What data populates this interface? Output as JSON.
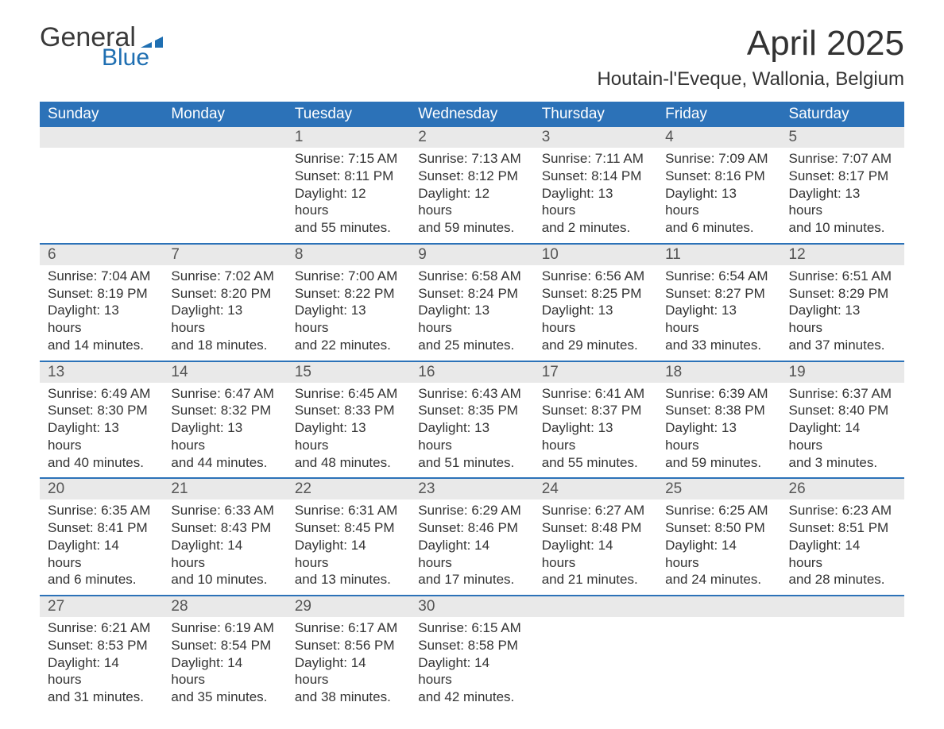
{
  "logo": {
    "text_general": "General",
    "text_blue": "Blue",
    "flag_color": "#1f6fb2"
  },
  "title": {
    "month_year": "April 2025",
    "location": "Houtain-l'Eveque, Wallonia, Belgium",
    "title_fontsize_pt": 33,
    "location_fontsize_pt": 18
  },
  "style": {
    "header_bg": "#2c72b8",
    "header_text_color": "#ffffff",
    "week_divider_color": "#2c72b8",
    "daynum_bg": "#e9e9e9",
    "body_text_color": "#333333",
    "daynum_text_color": "#555555",
    "page_bg": "#ffffff",
    "body_fontsize_pt": 13,
    "weekday_fontsize_pt": 14
  },
  "calendar": {
    "weekdays": [
      "Sunday",
      "Monday",
      "Tuesday",
      "Wednesday",
      "Thursday",
      "Friday",
      "Saturday"
    ],
    "weeks": [
      {
        "days": [
          {
            "blank": true
          },
          {
            "blank": true
          },
          {
            "num": "1",
            "sunrise": "7:15 AM",
            "sunset": "8:11 PM",
            "daylight_h": 12,
            "daylight_m": 55
          },
          {
            "num": "2",
            "sunrise": "7:13 AM",
            "sunset": "8:12 PM",
            "daylight_h": 12,
            "daylight_m": 59
          },
          {
            "num": "3",
            "sunrise": "7:11 AM",
            "sunset": "8:14 PM",
            "daylight_h": 13,
            "daylight_m": 2
          },
          {
            "num": "4",
            "sunrise": "7:09 AM",
            "sunset": "8:16 PM",
            "daylight_h": 13,
            "daylight_m": 6
          },
          {
            "num": "5",
            "sunrise": "7:07 AM",
            "sunset": "8:17 PM",
            "daylight_h": 13,
            "daylight_m": 10
          }
        ]
      },
      {
        "days": [
          {
            "num": "6",
            "sunrise": "7:04 AM",
            "sunset": "8:19 PM",
            "daylight_h": 13,
            "daylight_m": 14
          },
          {
            "num": "7",
            "sunrise": "7:02 AM",
            "sunset": "8:20 PM",
            "daylight_h": 13,
            "daylight_m": 18
          },
          {
            "num": "8",
            "sunrise": "7:00 AM",
            "sunset": "8:22 PM",
            "daylight_h": 13,
            "daylight_m": 22
          },
          {
            "num": "9",
            "sunrise": "6:58 AM",
            "sunset": "8:24 PM",
            "daylight_h": 13,
            "daylight_m": 25
          },
          {
            "num": "10",
            "sunrise": "6:56 AM",
            "sunset": "8:25 PM",
            "daylight_h": 13,
            "daylight_m": 29
          },
          {
            "num": "11",
            "sunrise": "6:54 AM",
            "sunset": "8:27 PM",
            "daylight_h": 13,
            "daylight_m": 33
          },
          {
            "num": "12",
            "sunrise": "6:51 AM",
            "sunset": "8:29 PM",
            "daylight_h": 13,
            "daylight_m": 37
          }
        ]
      },
      {
        "days": [
          {
            "num": "13",
            "sunrise": "6:49 AM",
            "sunset": "8:30 PM",
            "daylight_h": 13,
            "daylight_m": 40
          },
          {
            "num": "14",
            "sunrise": "6:47 AM",
            "sunset": "8:32 PM",
            "daylight_h": 13,
            "daylight_m": 44
          },
          {
            "num": "15",
            "sunrise": "6:45 AM",
            "sunset": "8:33 PM",
            "daylight_h": 13,
            "daylight_m": 48
          },
          {
            "num": "16",
            "sunrise": "6:43 AM",
            "sunset": "8:35 PM",
            "daylight_h": 13,
            "daylight_m": 51
          },
          {
            "num": "17",
            "sunrise": "6:41 AM",
            "sunset": "8:37 PM",
            "daylight_h": 13,
            "daylight_m": 55
          },
          {
            "num": "18",
            "sunrise": "6:39 AM",
            "sunset": "8:38 PM",
            "daylight_h": 13,
            "daylight_m": 59
          },
          {
            "num": "19",
            "sunrise": "6:37 AM",
            "sunset": "8:40 PM",
            "daylight_h": 14,
            "daylight_m": 3
          }
        ]
      },
      {
        "days": [
          {
            "num": "20",
            "sunrise": "6:35 AM",
            "sunset": "8:41 PM",
            "daylight_h": 14,
            "daylight_m": 6
          },
          {
            "num": "21",
            "sunrise": "6:33 AM",
            "sunset": "8:43 PM",
            "daylight_h": 14,
            "daylight_m": 10
          },
          {
            "num": "22",
            "sunrise": "6:31 AM",
            "sunset": "8:45 PM",
            "daylight_h": 14,
            "daylight_m": 13
          },
          {
            "num": "23",
            "sunrise": "6:29 AM",
            "sunset": "8:46 PM",
            "daylight_h": 14,
            "daylight_m": 17
          },
          {
            "num": "24",
            "sunrise": "6:27 AM",
            "sunset": "8:48 PM",
            "daylight_h": 14,
            "daylight_m": 21
          },
          {
            "num": "25",
            "sunrise": "6:25 AM",
            "sunset": "8:50 PM",
            "daylight_h": 14,
            "daylight_m": 24
          },
          {
            "num": "26",
            "sunrise": "6:23 AM",
            "sunset": "8:51 PM",
            "daylight_h": 14,
            "daylight_m": 28
          }
        ]
      },
      {
        "days": [
          {
            "num": "27",
            "sunrise": "6:21 AM",
            "sunset": "8:53 PM",
            "daylight_h": 14,
            "daylight_m": 31
          },
          {
            "num": "28",
            "sunrise": "6:19 AM",
            "sunset": "8:54 PM",
            "daylight_h": 14,
            "daylight_m": 35
          },
          {
            "num": "29",
            "sunrise": "6:17 AM",
            "sunset": "8:56 PM",
            "daylight_h": 14,
            "daylight_m": 38
          },
          {
            "num": "30",
            "sunrise": "6:15 AM",
            "sunset": "8:58 PM",
            "daylight_h": 14,
            "daylight_m": 42
          },
          {
            "blank": true
          },
          {
            "blank": true
          },
          {
            "blank": true
          }
        ]
      }
    ],
    "labels": {
      "sunrise_prefix": "Sunrise: ",
      "sunset_prefix": "Sunset: ",
      "daylight_prefix": "Daylight: ",
      "hours_word": " hours",
      "and_word": "and ",
      "minutes_word": " minutes."
    }
  }
}
